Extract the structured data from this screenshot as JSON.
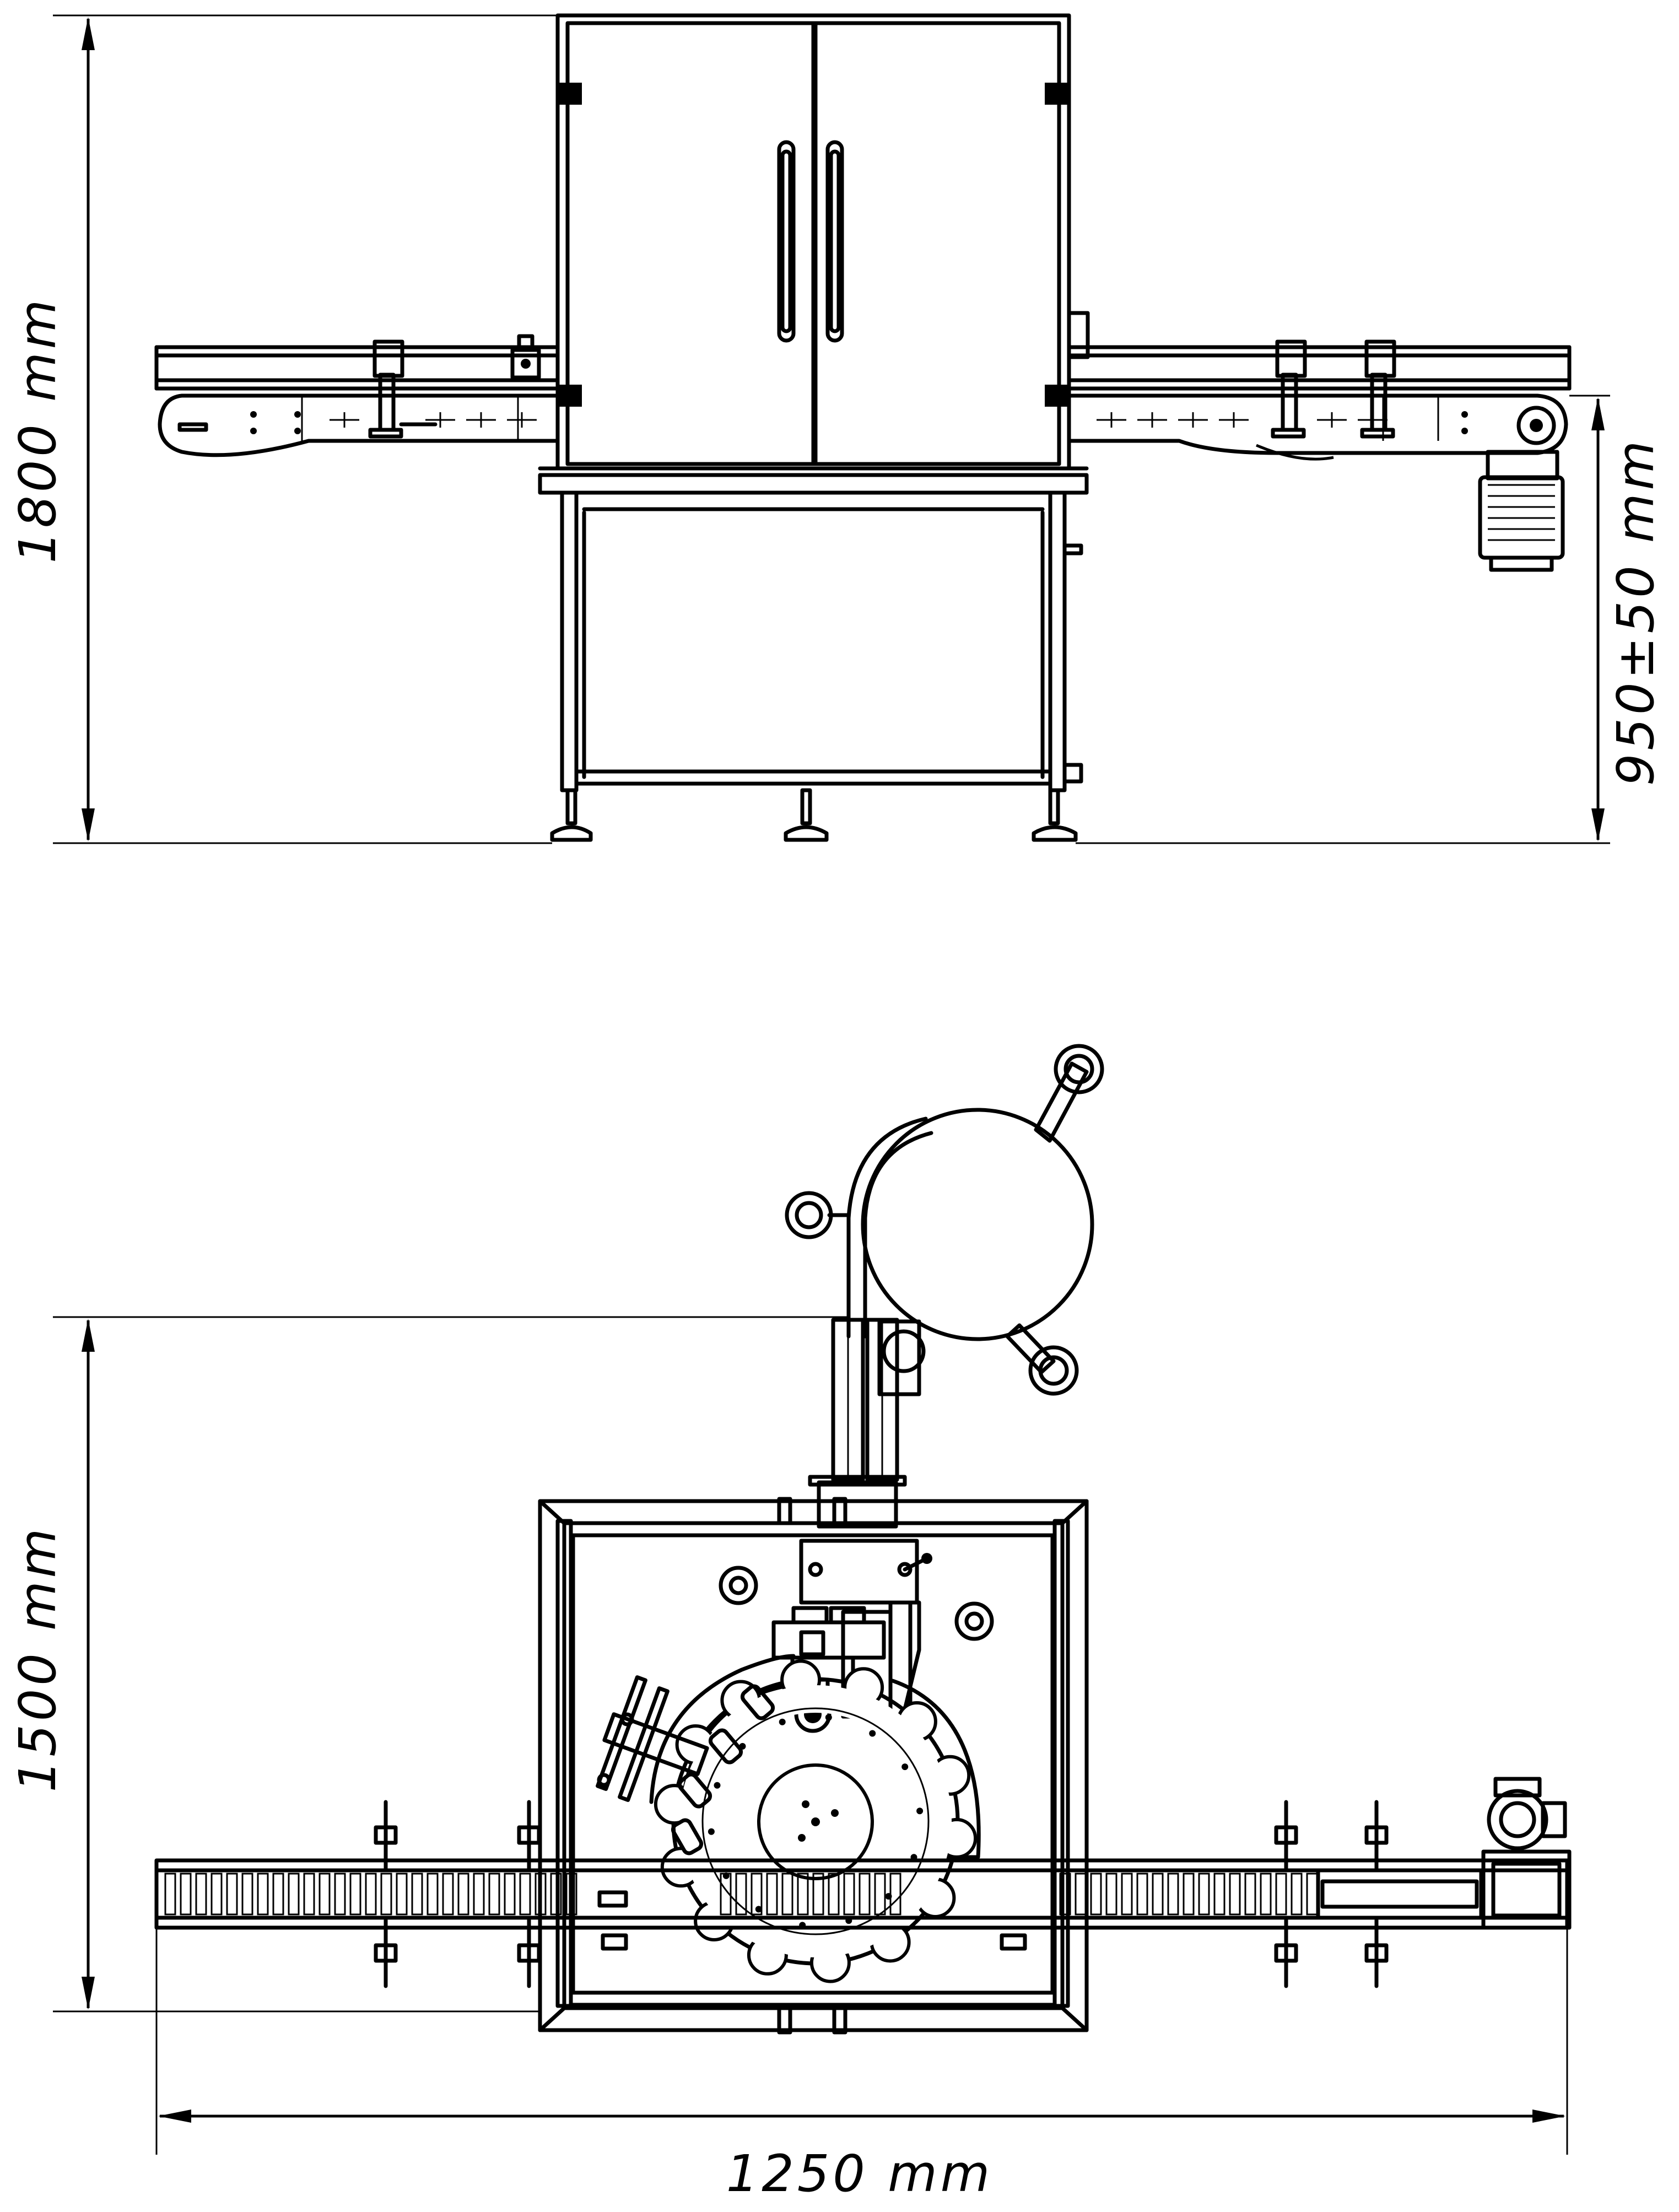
{
  "dimensions": {
    "height_total": "1800 mm",
    "conveyor_height": "950±50 mm",
    "depth": "1500 mm",
    "width": "1250 mm"
  },
  "colors": {
    "line": "#000000",
    "background": "#ffffff"
  }
}
